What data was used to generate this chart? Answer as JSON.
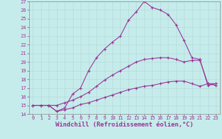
{
  "xlabel": "Windchill (Refroidissement éolien,°C)",
  "xlim": [
    -0.5,
    23.5
  ],
  "ylim": [
    14,
    27
  ],
  "xticks": [
    0,
    1,
    2,
    3,
    4,
    5,
    6,
    7,
    8,
    9,
    10,
    11,
    12,
    13,
    14,
    15,
    16,
    17,
    18,
    19,
    20,
    21,
    22,
    23
  ],
  "yticks": [
    14,
    15,
    16,
    17,
    18,
    19,
    20,
    21,
    22,
    23,
    24,
    25,
    26,
    27
  ],
  "background_color": "#c5ecea",
  "line_color": "#993399",
  "line1_x": [
    0,
    1,
    2,
    3,
    4,
    5,
    6,
    7,
    8,
    9,
    10,
    11,
    12,
    13,
    14,
    15,
    16,
    17,
    18,
    19,
    20,
    21,
    22,
    23
  ],
  "line1_y": [
    15.0,
    15.0,
    15.0,
    14.3,
    14.5,
    14.7,
    15.1,
    15.3,
    15.6,
    15.9,
    16.2,
    16.5,
    16.8,
    17.0,
    17.2,
    17.3,
    17.5,
    17.7,
    17.8,
    17.8,
    17.5,
    17.2,
    17.5,
    17.5
  ],
  "line2_x": [
    0,
    1,
    2,
    3,
    4,
    5,
    6,
    7,
    8,
    9,
    10,
    11,
    12,
    13,
    14,
    15,
    16,
    17,
    18,
    19,
    20,
    21,
    22,
    23
  ],
  "line2_y": [
    15.0,
    15.0,
    15.0,
    15.0,
    15.3,
    15.6,
    16.0,
    16.5,
    17.2,
    17.9,
    18.5,
    19.0,
    19.5,
    20.0,
    20.3,
    20.4,
    20.5,
    20.5,
    20.3,
    20.0,
    20.2,
    20.2,
    17.5,
    17.3
  ],
  "line3_x": [
    0,
    1,
    2,
    3,
    4,
    5,
    6,
    7,
    8,
    9,
    10,
    11,
    12,
    13,
    14,
    15,
    16,
    17,
    18,
    19,
    20,
    21,
    22,
    23
  ],
  "line3_y": [
    15.0,
    15.0,
    15.0,
    14.3,
    14.7,
    16.3,
    17.0,
    19.0,
    20.5,
    21.5,
    22.3,
    23.0,
    24.8,
    25.8,
    27.0,
    26.3,
    26.0,
    25.5,
    24.3,
    22.5,
    20.5,
    20.3,
    17.3,
    17.5
  ],
  "tick_fontsize": 5.0,
  "xlabel_fontsize": 6.5
}
